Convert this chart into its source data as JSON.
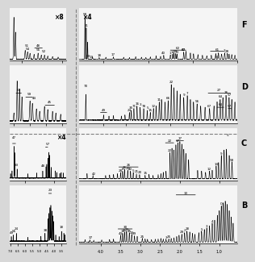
{
  "bg_color": "#d8d8d8",
  "panel_bg": "#f5f5f5",
  "label_F": "F",
  "label_D": "D",
  "label_C": "C",
  "label_B": "B",
  "mult_x8": "×8",
  "mult_x4_top": "×4",
  "mult_x4_bot": "×4",
  "tick_fontsize": 3.5,
  "peak_fontsize": 3.0,
  "side_label_fontsize": 7
}
